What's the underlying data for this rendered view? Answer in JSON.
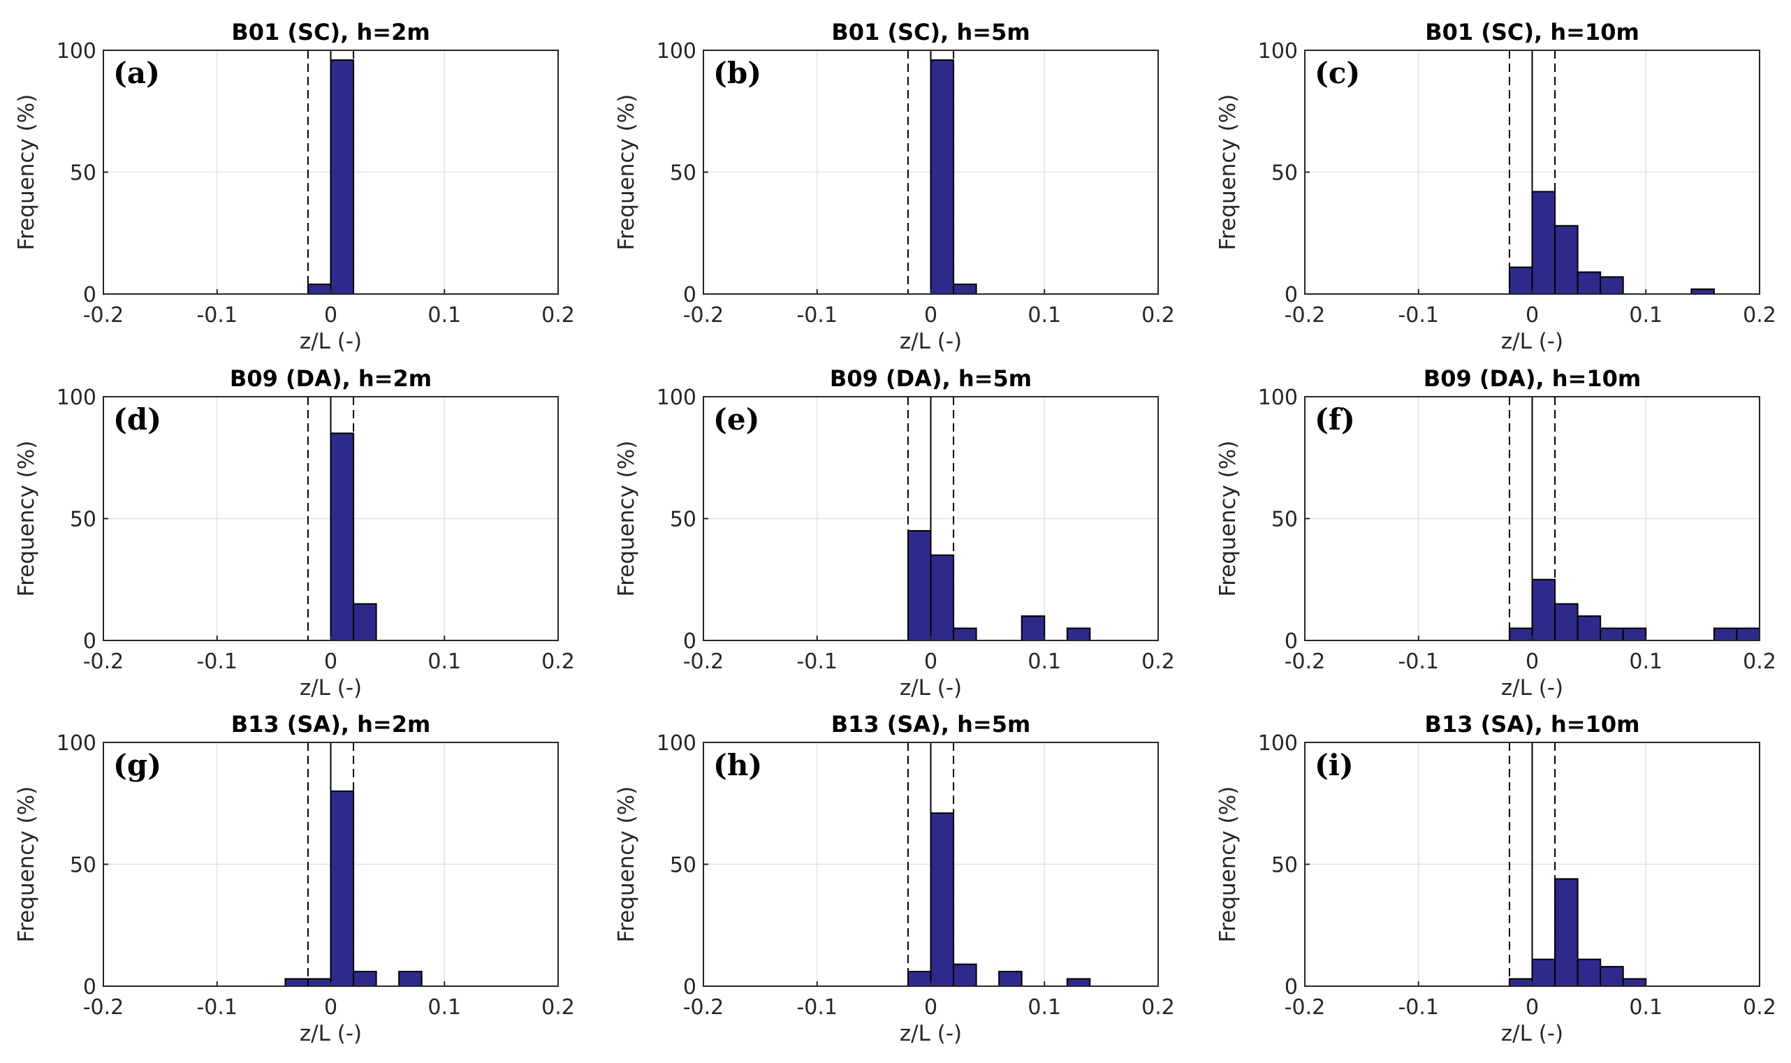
{
  "chart_data": [
    {
      "type": "bar",
      "panel": "(a)",
      "title": "B01 (SC), h=2m",
      "xlabel": "z/L (-)",
      "ylabel": "Frequency (%)",
      "xlim": [
        -0.2,
        0.2
      ],
      "ylim": [
        0,
        100
      ],
      "xticks": [
        "-0.2",
        "-0.1",
        "0",
        "0.1",
        "0.2"
      ],
      "yticks": [
        "0",
        "50",
        "100"
      ],
      "bin_width": 0.02,
      "bins": [
        {
          "x": -0.02,
          "value": 4
        },
        {
          "x": 0.0,
          "value": 96
        }
      ],
      "vlines": {
        "solid": 0,
        "dashed": [
          -0.02,
          0.02
        ]
      }
    },
    {
      "type": "bar",
      "panel": "(b)",
      "title": "B01 (SC), h=5m",
      "xlabel": "z/L (-)",
      "ylabel": "Frequency (%)",
      "xlim": [
        -0.2,
        0.2
      ],
      "ylim": [
        0,
        100
      ],
      "xticks": [
        "-0.2",
        "-0.1",
        "0",
        "0.1",
        "0.2"
      ],
      "yticks": [
        "0",
        "50",
        "100"
      ],
      "bin_width": 0.02,
      "bins": [
        {
          "x": 0.0,
          "value": 96
        },
        {
          "x": 0.02,
          "value": 4
        }
      ],
      "vlines": {
        "solid": 0,
        "dashed": [
          -0.02,
          0.02
        ]
      }
    },
    {
      "type": "bar",
      "panel": "(c)",
      "title": "B01 (SC), h=10m",
      "xlabel": "z/L (-)",
      "ylabel": "Frequency (%)",
      "xlim": [
        -0.2,
        0.2
      ],
      "ylim": [
        0,
        100
      ],
      "xticks": [
        "-0.2",
        "-0.1",
        "0",
        "0.1",
        "0.2"
      ],
      "yticks": [
        "0",
        "50",
        "100"
      ],
      "bin_width": 0.02,
      "bins": [
        {
          "x": -0.02,
          "value": 11
        },
        {
          "x": 0.0,
          "value": 42
        },
        {
          "x": 0.02,
          "value": 28
        },
        {
          "x": 0.04,
          "value": 9
        },
        {
          "x": 0.06,
          "value": 7
        },
        {
          "x": 0.14,
          "value": 2
        }
      ],
      "vlines": {
        "solid": 0,
        "dashed": [
          -0.02,
          0.02
        ]
      }
    },
    {
      "type": "bar",
      "panel": "(d)",
      "title": "B09 (DA), h=2m",
      "xlabel": "z/L (-)",
      "ylabel": "Frequency (%)",
      "xlim": [
        -0.2,
        0.2
      ],
      "ylim": [
        0,
        100
      ],
      "xticks": [
        "-0.2",
        "-0.1",
        "0",
        "0.1",
        "0.2"
      ],
      "yticks": [
        "0",
        "50",
        "100"
      ],
      "bin_width": 0.02,
      "bins": [
        {
          "x": 0.0,
          "value": 85
        },
        {
          "x": 0.02,
          "value": 15
        }
      ],
      "vlines": {
        "solid": 0,
        "dashed": [
          -0.02,
          0.02
        ]
      }
    },
    {
      "type": "bar",
      "panel": "(e)",
      "title": "B09 (DA), h=5m",
      "xlabel": "z/L (-)",
      "ylabel": "Frequency (%)",
      "xlim": [
        -0.2,
        0.2
      ],
      "ylim": [
        0,
        100
      ],
      "xticks": [
        "-0.2",
        "-0.1",
        "0",
        "0.1",
        "0.2"
      ],
      "yticks": [
        "0",
        "50",
        "100"
      ],
      "bin_width": 0.02,
      "bins": [
        {
          "x": -0.02,
          "value": 45
        },
        {
          "x": 0.0,
          "value": 35
        },
        {
          "x": 0.02,
          "value": 5
        },
        {
          "x": 0.08,
          "value": 10
        },
        {
          "x": 0.12,
          "value": 5
        }
      ],
      "vlines": {
        "solid": 0,
        "dashed": [
          -0.02,
          0.02
        ]
      }
    },
    {
      "type": "bar",
      "panel": "(f)",
      "title": "B09 (DA), h=10m",
      "xlabel": "z/L (-)",
      "ylabel": "Frequency (%)",
      "xlim": [
        -0.2,
        0.2
      ],
      "ylim": [
        0,
        100
      ],
      "xticks": [
        "-0.2",
        "-0.1",
        "0",
        "0.1",
        "0.2"
      ],
      "yticks": [
        "0",
        "50",
        "100"
      ],
      "bin_width": 0.02,
      "bins": [
        {
          "x": -0.02,
          "value": 5
        },
        {
          "x": 0.0,
          "value": 25
        },
        {
          "x": 0.02,
          "value": 15
        },
        {
          "x": 0.04,
          "value": 10
        },
        {
          "x": 0.06,
          "value": 5
        },
        {
          "x": 0.08,
          "value": 5
        },
        {
          "x": 0.16,
          "value": 5
        },
        {
          "x": 0.18,
          "value": 5
        }
      ],
      "vlines": {
        "solid": 0,
        "dashed": [
          -0.02,
          0.02
        ]
      }
    },
    {
      "type": "bar",
      "panel": "(g)",
      "title": "B13 (SA), h=2m",
      "xlabel": "z/L (-)",
      "ylabel": "Frequency (%)",
      "xlim": [
        -0.2,
        0.2
      ],
      "ylim": [
        0,
        100
      ],
      "xticks": [
        "-0.2",
        "-0.1",
        "0",
        "0.1",
        "0.2"
      ],
      "yticks": [
        "0",
        "50",
        "100"
      ],
      "bin_width": 0.02,
      "bins": [
        {
          "x": -0.04,
          "value": 3
        },
        {
          "x": -0.02,
          "value": 3
        },
        {
          "x": 0.0,
          "value": 80
        },
        {
          "x": 0.02,
          "value": 6
        },
        {
          "x": 0.06,
          "value": 6
        }
      ],
      "vlines": {
        "solid": 0,
        "dashed": [
          -0.02,
          0.02
        ]
      }
    },
    {
      "type": "bar",
      "panel": "(h)",
      "title": "B13 (SA), h=5m",
      "xlabel": "z/L (-)",
      "ylabel": "Frequency (%)",
      "xlim": [
        -0.2,
        0.2
      ],
      "ylim": [
        0,
        100
      ],
      "xticks": [
        "-0.2",
        "-0.1",
        "0",
        "0.1",
        "0.2"
      ],
      "yticks": [
        "0",
        "50",
        "100"
      ],
      "bin_width": 0.02,
      "bins": [
        {
          "x": -0.02,
          "value": 6
        },
        {
          "x": 0.0,
          "value": 71
        },
        {
          "x": 0.02,
          "value": 9
        },
        {
          "x": 0.06,
          "value": 6
        },
        {
          "x": 0.12,
          "value": 3
        }
      ],
      "vlines": {
        "solid": 0,
        "dashed": [
          -0.02,
          0.02
        ]
      }
    },
    {
      "type": "bar",
      "panel": "(i)",
      "title": "B13 (SA), h=10m",
      "xlabel": "z/L (-)",
      "ylabel": "Frequency (%)",
      "xlim": [
        -0.2,
        0.2
      ],
      "ylim": [
        0,
        100
      ],
      "xticks": [
        "-0.2",
        "-0.1",
        "0",
        "0.1",
        "0.2"
      ],
      "yticks": [
        "0",
        "50",
        "100"
      ],
      "bin_width": 0.02,
      "bins": [
        {
          "x": -0.02,
          "value": 3
        },
        {
          "x": 0.0,
          "value": 11
        },
        {
          "x": 0.02,
          "value": 44
        },
        {
          "x": 0.04,
          "value": 11
        },
        {
          "x": 0.06,
          "value": 8
        },
        {
          "x": 0.08,
          "value": 3
        }
      ],
      "vlines": {
        "solid": 0,
        "dashed": [
          -0.02,
          0.02
        ]
      }
    }
  ],
  "colors": {
    "bar_fill": "#2e2a8c",
    "bar_edge": "#000000",
    "grid": "#e2e2e2"
  }
}
